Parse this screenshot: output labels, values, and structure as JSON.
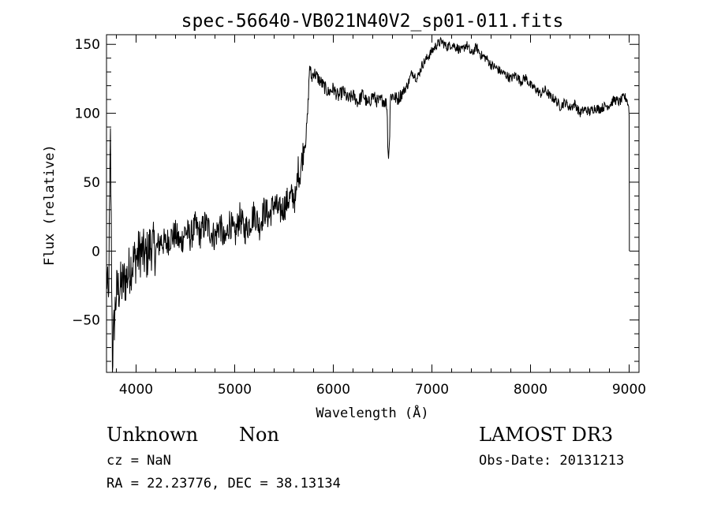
{
  "chart_data": {
    "type": "line",
    "title": "spec-56640-VB021N40V2_sp01-011.fits",
    "xlabel": "Wavelength (Å)",
    "ylabel": "Flux (relative)",
    "xlim": [
      3700,
      9100
    ],
    "ylim": [
      -88,
      157
    ],
    "xticks": [
      4000,
      5000,
      6000,
      7000,
      8000,
      9000
    ],
    "yticks": [
      -50,
      0,
      50,
      100,
      150
    ],
    "xtick_labels": [
      "4000",
      "5000",
      "6000",
      "7000",
      "8000",
      "9000"
    ],
    "ytick_labels": [
      "−50",
      "0",
      "50",
      "100",
      "150"
    ],
    "series": [
      {
        "name": "spectrum",
        "x": [
          3700,
          3720,
          3740,
          3760,
          3780,
          3800,
          3850,
          3900,
          3950,
          4000,
          4050,
          4100,
          4150,
          4200,
          4250,
          4300,
          4350,
          4400,
          4450,
          4500,
          4550,
          4600,
          4650,
          4700,
          4750,
          4800,
          4850,
          4900,
          4950,
          5000,
          5050,
          5100,
          5150,
          5200,
          5250,
          5300,
          5350,
          5400,
          5450,
          5500,
          5550,
          5600,
          5620,
          5640,
          5660,
          5680,
          5700,
          5720,
          5740,
          5760,
          5780,
          5800,
          5850,
          5900,
          5950,
          6000,
          6050,
          6100,
          6150,
          6200,
          6250,
          6300,
          6350,
          6400,
          6450,
          6500,
          6540,
          6560,
          6580,
          6600,
          6650,
          6700,
          6750,
          6800,
          6850,
          6900,
          6950,
          7000,
          7050,
          7100,
          7150,
          7200,
          7250,
          7300,
          7350,
          7400,
          7450,
          7500,
          7550,
          7600,
          7650,
          7700,
          7750,
          7800,
          7850,
          7900,
          7950,
          8000,
          8050,
          8100,
          8150,
          8200,
          8250,
          8300,
          8350,
          8400,
          8450,
          8500,
          8550,
          8600,
          8650,
          8700,
          8750,
          8800,
          8850,
          8900,
          8950,
          8980,
          9000,
          9002
        ],
        "y": [
          -15,
          -40,
          80,
          -78,
          -50,
          -30,
          -25,
          -20,
          -10,
          -5,
          0,
          -5,
          5,
          0,
          8,
          5,
          10,
          12,
          5,
          15,
          10,
          18,
          12,
          20,
          15,
          10,
          20,
          5,
          22,
          10,
          25,
          15,
          20,
          28,
          18,
          30,
          25,
          35,
          28,
          32,
          38,
          40,
          35,
          60,
          55,
          65,
          75,
          80,
          100,
          135,
          125,
          130,
          125,
          120,
          115,
          118,
          112,
          116,
          110,
          113,
          108,
          114,
          106,
          113,
          108,
          110,
          107,
          85,
          112,
          113,
          110,
          115,
          120,
          130,
          125,
          135,
          140,
          145,
          150,
          152,
          148,
          150,
          148,
          145,
          150,
          143,
          148,
          142,
          140,
          135,
          133,
          130,
          128,
          125,
          128,
          123,
          126,
          120,
          118,
          114,
          117,
          112,
          110,
          105,
          108,
          104,
          107,
          100,
          103,
          101,
          104,
          103,
          105,
          106,
          110,
          108,
          112,
          110,
          98,
          20
        ]
      }
    ]
  },
  "info": {
    "object_type": "Unknown",
    "subclass": "Non",
    "survey": "LAMOST DR3",
    "redshift": "cz = NaN",
    "obs_date": "Obs-Date: 20131213",
    "coords": "RA =  22.23776, DEC =  38.13134"
  }
}
